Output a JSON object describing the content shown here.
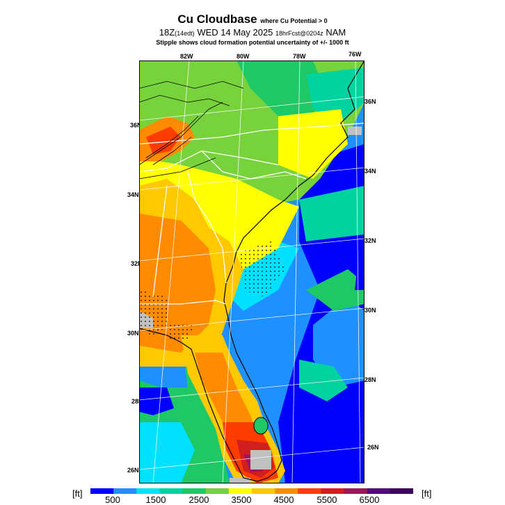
{
  "header": {
    "title": "Cu Cloudbase",
    "title_qualifier": "where Cu Potential > 0",
    "valid_time": "18Z",
    "valid_time_local": "(14edt)",
    "valid_date": "WED 14 May 2025",
    "forecast_info": "18hrFcst@0204z",
    "model": "NAM",
    "subtitle": "Stipple shows cloud formation potential uncertainty of +/- 1000 ft"
  },
  "map": {
    "top_labels": [
      "82W",
      "80W",
      "78W",
      "76W"
    ],
    "left_labels": [
      "36N",
      "34N",
      "32N",
      "30N",
      "28N",
      "26N"
    ],
    "right_labels": [
      "36N",
      "34N",
      "32N",
      "30N",
      "28N",
      "26N"
    ]
  },
  "colorbar": {
    "unit_left": "[ft]",
    "unit_right": "[ft]",
    "tick_labels": [
      "500",
      "1500",
      "2500",
      "3500",
      "4500",
      "5500",
      "6500"
    ],
    "colors": [
      "#0000ff",
      "#1e90ff",
      "#00e0ff",
      "#00d2a0",
      "#1ec864",
      "#78d23c",
      "#ffff00",
      "#ffc800",
      "#ff8c00",
      "#ff3c00",
      "#d21e1e",
      "#a0145a",
      "#50087a",
      "#3c005f"
    ]
  }
}
